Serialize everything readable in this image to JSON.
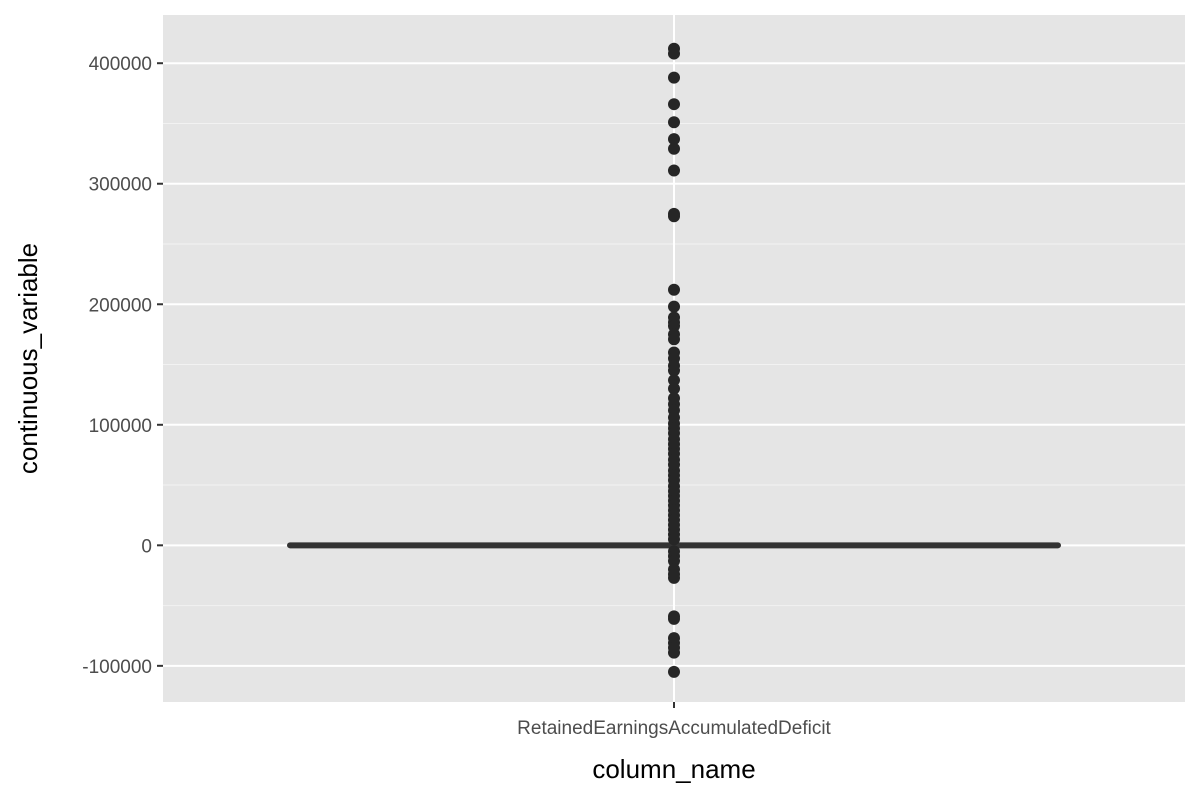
{
  "chart_data": {
    "type": "boxplot",
    "title": "",
    "xlabel": "column_name",
    "ylabel": "continuous_variable",
    "categories": [
      "RetainedEarningsAccumulatedDeficit"
    ],
    "ylim": [
      -130000,
      440000
    ],
    "y_ticks": [
      -100000,
      0,
      100000,
      200000,
      300000,
      400000
    ],
    "y_tick_labels": [
      "-100000",
      "0",
      "100000",
      "200000",
      "300000",
      "400000"
    ],
    "grid": true,
    "legend": "none",
    "box": {
      "q1": -800,
      "median": 0,
      "q3": 800,
      "whisker_low": -2500,
      "whisker_high": 2500
    },
    "outliers": [
      412000,
      408000,
      388000,
      366000,
      351000,
      337000,
      329000,
      311000,
      275000,
      273000,
      212000,
      198000,
      189000,
      185000,
      182000,
      175000,
      171000,
      160000,
      155000,
      149000,
      145000,
      137000,
      130000,
      122000,
      117000,
      112000,
      106000,
      101000,
      97000,
      93000,
      88000,
      84000,
      80000,
      76000,
      71000,
      67000,
      62000,
      58000,
      54000,
      49000,
      45000,
      41000,
      37000,
      33000,
      29000,
      25000,
      21000,
      17000,
      13000,
      9000,
      5000,
      -5000,
      -9000,
      -13000,
      -20000,
      -24000,
      -27000,
      -59000,
      -61000,
      -77000,
      -81000,
      -85000,
      -89000,
      -105000
    ],
    "colors": {
      "panel": "#e5e5e5",
      "grid_major": "#ffffff",
      "grid_minor": "#f2f2f2",
      "points": "#262626",
      "box": "#333333"
    }
  }
}
